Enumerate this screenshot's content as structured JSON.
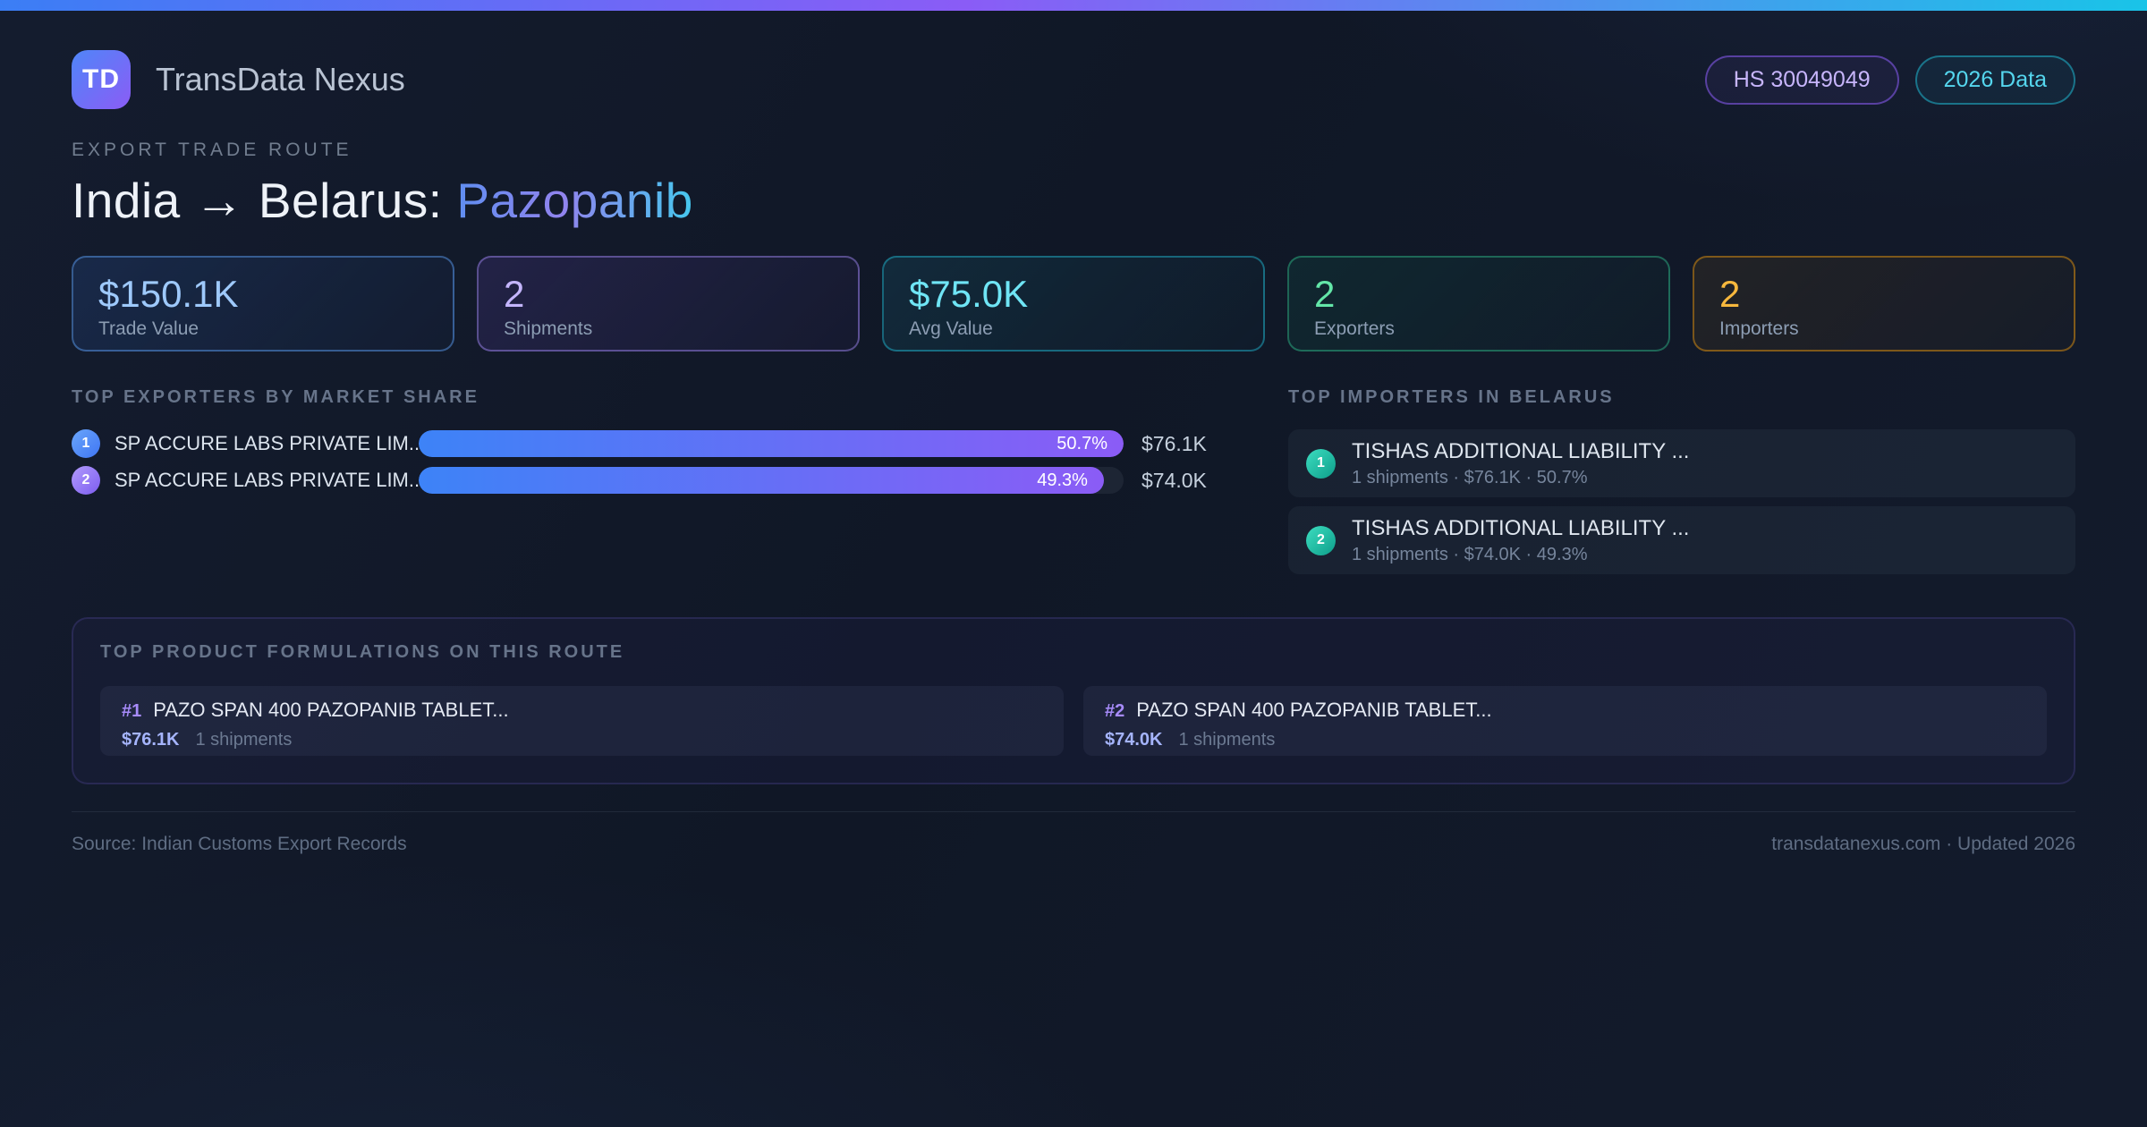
{
  "brand": {
    "logo_text": "TD",
    "name": "TransData Nexus"
  },
  "header_badges": [
    {
      "label": "HS 30049049"
    },
    {
      "label": "2026 Data"
    }
  ],
  "hero": {
    "kicker": "EXPORT TRADE ROUTE",
    "title_main": "India → Belarus: ",
    "title_accent": "Pazopanib"
  },
  "stats": [
    {
      "value": "$150.1K",
      "label": "Trade Value",
      "accent": "#9ec9fb"
    },
    {
      "value": "2",
      "label": "Shipments",
      "accent": "#c4b5fd"
    },
    {
      "value": "$75.0K",
      "label": "Avg Value",
      "accent": "#6fe5f5"
    },
    {
      "value": "2",
      "label": "Exporters",
      "accent": "#63e6a8"
    },
    {
      "value": "2",
      "label": "Importers",
      "accent": "#f6b83d"
    }
  ],
  "exporters": {
    "title": "TOP EXPORTERS BY MARKET SHARE",
    "rows": [
      {
        "rank": "1",
        "name": "SP ACCURE LABS PRIVATE LIM...",
        "share_label": "50.7%",
        "share_pct": 50.7,
        "value": "$76.1K",
        "bar_rel_pct": 100
      },
      {
        "rank": "2",
        "name": "SP ACCURE LABS PRIVATE LIM...",
        "share_label": "49.3%",
        "share_pct": 49.3,
        "value": "$74.0K",
        "bar_rel_pct": 97.2
      }
    ]
  },
  "importers": {
    "title": "TOP IMPORTERS IN BELARUS",
    "rows": [
      {
        "rank": "1",
        "name": "TISHAS ADDITIONAL LIABILITY ...",
        "meta": "1 shipments · $76.1K · 50.7%"
      },
      {
        "rank": "2",
        "name": "TISHAS ADDITIONAL LIABILITY ...",
        "meta": "1 shipments · $74.0K · 49.3%"
      }
    ]
  },
  "products": {
    "title": "TOP PRODUCT FORMULATIONS ON THIS ROUTE",
    "cards": [
      {
        "rank": "#1",
        "name": "PAZO SPAN 400 PAZOPANIB TABLET...",
        "value": "$76.1K",
        "meta": "1 shipments"
      },
      {
        "rank": "#2",
        "name": "PAZO SPAN 400 PAZOPANIB TABLET...",
        "value": "$74.0K",
        "meta": "1 shipments"
      }
    ]
  },
  "footer": {
    "left": "Source: Indian Customs Export Records",
    "right": "transdatanexus.com · Updated 2026"
  },
  "colors": {
    "topbar_gradient": [
      "#3b7ef5",
      "#8a5cf6",
      "#19c4e8"
    ],
    "page_background": "#121a2b",
    "accent_blue": "#3b82f6",
    "accent_purple": "#8b5cf6",
    "accent_cyan": "#22d3ee",
    "accent_green": "#34d399",
    "accent_amber": "#f59e0b",
    "importer_badge": "#14b8a6"
  }
}
